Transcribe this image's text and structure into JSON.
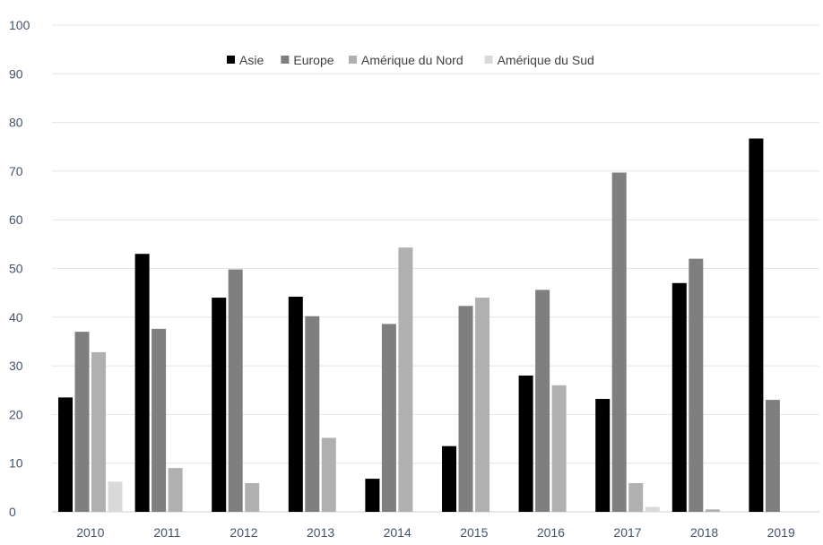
{
  "chart_data": {
    "type": "bar",
    "title": "",
    "xlabel": "",
    "ylabel": "",
    "ylim": [
      0,
      100
    ],
    "yticks": [
      0,
      10,
      20,
      30,
      40,
      50,
      60,
      70,
      80,
      90,
      100
    ],
    "grid": true,
    "legend_position": "top",
    "categories": [
      "2010",
      "2011",
      "2012",
      "2013",
      "2014",
      "2015",
      "2016",
      "2017",
      "2018",
      "2019"
    ],
    "series": [
      {
        "name": "Asie",
        "color": "#000000",
        "values": [
          23.5,
          53,
          44,
          44.2,
          6.8,
          13.5,
          28,
          23.2,
          47,
          76.7
        ]
      },
      {
        "name": "Europe",
        "color": "#7f7f7f",
        "values": [
          37,
          37.6,
          49.8,
          40.2,
          38.6,
          42.3,
          45.6,
          69.7,
          52,
          23
        ]
      },
      {
        "name": "Amérique du Nord",
        "color": "#b0b0b0",
        "values": [
          32.8,
          9,
          5.9,
          15.2,
          54.3,
          44,
          26,
          5.9,
          0.5,
          0
        ]
      },
      {
        "name": "Amérique du Sud",
        "color": "#d9d9d9",
        "values": [
          6.2,
          0,
          0,
          0,
          0,
          0,
          0,
          1,
          0,
          0
        ]
      }
    ]
  }
}
